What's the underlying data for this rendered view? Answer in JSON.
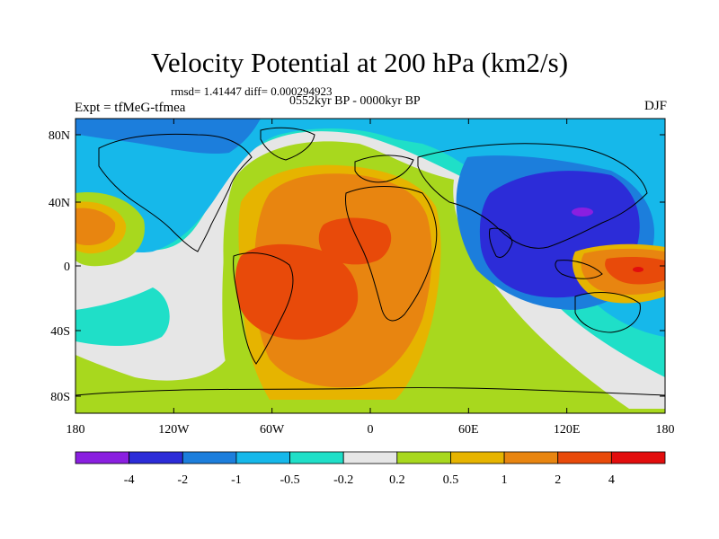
{
  "title": "Velocity Potential at 200 hPa (km2/s)",
  "stats": {
    "rmsd_label": "rmsd= 1.41447 diff= 0.000294923"
  },
  "experiment_label": "Expt = tfMeG-tfmea",
  "period_label": "0552kyr BP - 0000kyr BP",
  "season": "DJF",
  "map": {
    "lat_labels": [
      "80N",
      "40N",
      "0",
      "40S",
      "80S"
    ],
    "lon_labels": [
      "180",
      "120W",
      "60W",
      "0",
      "60E",
      "120E",
      "180"
    ]
  },
  "colorbar": {
    "colors": [
      "#8a1fe0",
      "#2c2cd8",
      "#1c7edc",
      "#16b8ea",
      "#1fdfc8",
      "#e6e6e6",
      "#a8d81e",
      "#e6b400",
      "#e88510",
      "#e84a0a",
      "#e20d0d"
    ],
    "labels": [
      "-4",
      "-2",
      "-1",
      "-0.5",
      "-0.2",
      "0.2",
      "0.5",
      "1",
      "2",
      "4"
    ]
  },
  "colors": {
    "background_field": "#a8d81e",
    "land_outline": "#000000"
  }
}
